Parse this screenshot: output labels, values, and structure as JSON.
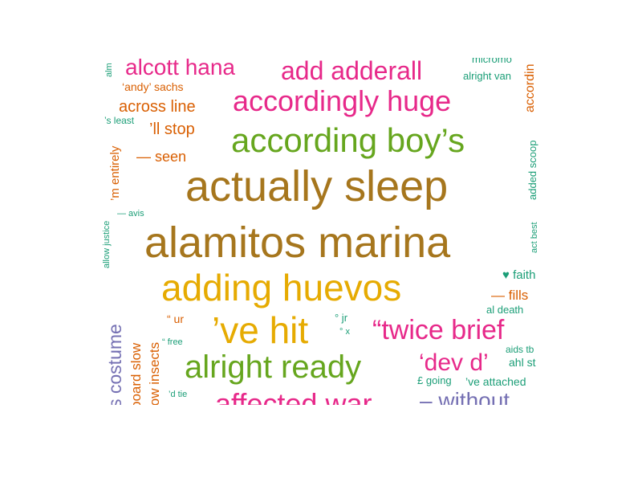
{
  "colors": {
    "teal": "#1b9e77",
    "orange": "#d95f02",
    "purple": "#7570b3",
    "pink": "#e7298a",
    "green": "#66a61e",
    "gold": "#e6ab02",
    "brown": "#a6761d"
  },
  "words": [
    {
      "text": "actually sleep",
      "color": "brown"
    },
    {
      "text": "alamitos marina",
      "color": "brown"
    },
    {
      "text": "according boy’s",
      "color": "green"
    },
    {
      "text": "adding huevos",
      "color": "gold"
    },
    {
      "text": "accordingly huge",
      "color": "pink"
    },
    {
      "text": "add adderall",
      "color": "pink"
    },
    {
      "text": "alcott hana",
      "color": "pink"
    },
    {
      "text": "’ve hit",
      "color": "gold"
    },
    {
      "text": "alright ready",
      "color": "green"
    },
    {
      "text": "“twice brief",
      "color": "pink"
    },
    {
      "text": "‘dev d’",
      "color": "pink"
    },
    {
      "text": "affected war",
      "color": "pink"
    },
    {
      "text": "– without",
      "color": "purple"
    },
    {
      "text": "across line",
      "color": "orange"
    },
    {
      "text": "’ll stop",
      "color": "orange"
    },
    {
      "text": "— seen",
      "color": "orange"
    },
    {
      "text": "— fills",
      "color": "orange"
    },
    {
      "text": "♥ faith",
      "color": "teal"
    },
    {
      "text": "‘andy’ sachs",
      "color": "orange"
    },
    {
      "text": "alright van",
      "color": "teal"
    },
    {
      "text": "micromo",
      "color": "teal"
    },
    {
      "text": "’s least",
      "color": "teal"
    },
    {
      "text": "— avis",
      "color": "teal"
    },
    {
      "text": "al death",
      "color": "teal"
    },
    {
      "text": "aids tb",
      "color": "teal"
    },
    {
      "text": "ahl st",
      "color": "teal"
    },
    {
      "text": "£ going",
      "color": "teal"
    },
    {
      "text": "’ve attached",
      "color": "teal"
    },
    {
      "text": "“ ur",
      "color": "orange"
    },
    {
      "text": "° jr",
      "color": "teal"
    },
    {
      "text": "° x",
      "color": "teal"
    },
    {
      "text": "“ free",
      "color": "teal"
    },
    {
      "text": "’d tie",
      "color": "teal"
    },
    {
      "text": "alm",
      "color": "teal"
    },
    {
      "text": "’m entirely",
      "color": "orange"
    },
    {
      "text": "allow justice",
      "color": "teal"
    },
    {
      "text": "s costume",
      "color": "purple"
    },
    {
      "text": "board slow",
      "color": "orange"
    },
    {
      "text": "low insects",
      "color": "orange"
    },
    {
      "text": "accordin",
      "color": "orange"
    },
    {
      "text": "added scoop",
      "color": "teal"
    },
    {
      "text": "act best",
      "color": "teal"
    }
  ]
}
